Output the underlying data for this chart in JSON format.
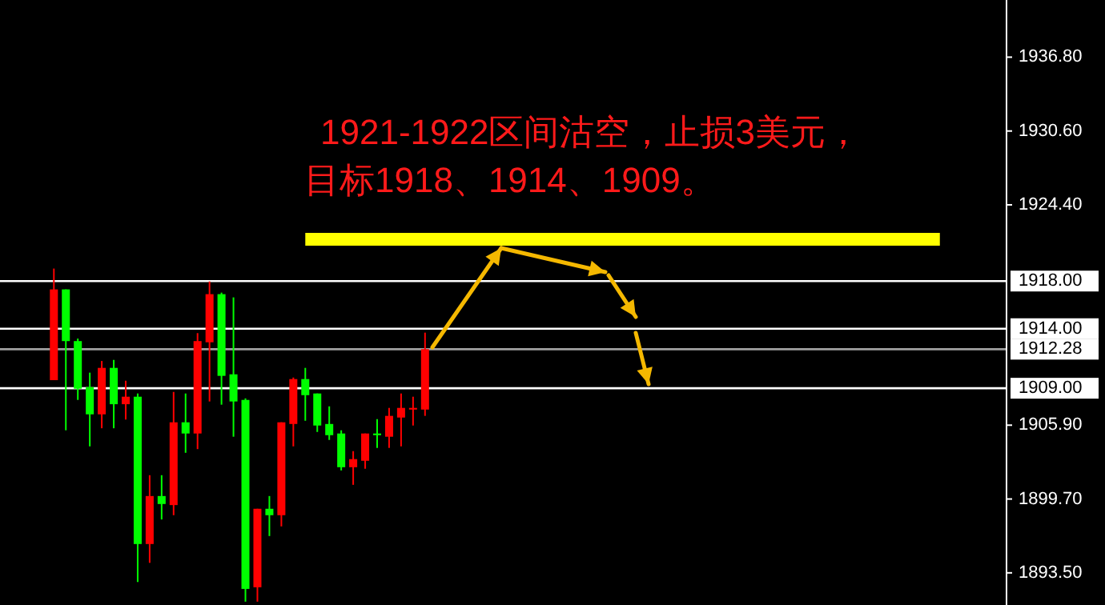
{
  "chart_data": {
    "type": "candlestick",
    "annotations": [
      "1921-1922区间沽空，止损3美元，",
      "目标1918、1914、1909。"
    ],
    "categories": [
      null,
      null,
      null,
      null,
      null,
      null,
      null,
      null,
      null,
      null,
      null,
      null,
      null,
      null,
      null,
      null,
      null,
      null,
      null,
      null,
      null,
      null,
      null,
      null,
      null,
      null,
      null,
      null,
      null,
      null,
      null,
      null,
      null,
      null,
      null,
      null,
      null,
      null,
      null,
      null,
      null,
      null,
      null,
      null,
      null,
      null,
      null,
      null,
      null,
      null,
      null,
      null,
      null,
      null,
      null,
      null,
      null,
      null,
      null,
      null,
      null,
      null,
      null,
      null,
      null,
      null,
      null,
      null,
      null,
      null,
      null,
      null,
      null,
      null,
      null,
      null,
      null,
      null,
      null,
      null,
      null,
      null,
      null,
      null
    ],
    "ohlc": [
      null,
      null,
      null,
      null,
      [
        1909.68,
        1919.05,
        1909.68,
        1917.3
      ],
      [
        1917.3,
        1917.3,
        1905.47,
        1912.96
      ],
      [
        1912.96,
        1913.17,
        1908.02,
        1908.96
      ],
      [
        1909.1,
        1910.31,
        1904.12,
        1906.81
      ],
      [
        1906.81,
        1911.29,
        1905.64,
        1910.71
      ],
      [
        1910.71,
        1911.38,
        1905.64,
        1907.66
      ],
      [
        1907.66,
        1909.64,
        1906.37,
        1908.29
      ],
      [
        1908.29,
        1908.56,
        1892.73,
        1895.92
      ],
      [
        1895.92,
        1901.7,
        1894.34,
        1899.95
      ],
      [
        1899.95,
        1901.7,
        1897.98,
        1899.28
      ],
      [
        1899.19,
        1908.69,
        1898.34,
        1906.14
      ],
      [
        1906.14,
        1908.56,
        1903.58,
        1905.2
      ],
      [
        1905.2,
        1913.63,
        1903.89,
        1912.96
      ],
      [
        1912.86,
        1917.97,
        1907.89,
        1916.9
      ],
      [
        1916.9,
        1917.03,
        1907.62,
        1910.04
      ],
      [
        1910.17,
        1916.63,
        1904.93,
        1907.89
      ],
      [
        1908.02,
        1908.15,
        1891.08,
        1892.15
      ],
      [
        1892.29,
        1898.88,
        1891.08,
        1898.88
      ],
      [
        1898.88,
        1899.95,
        1896.59,
        1898.34
      ],
      [
        1898.34,
        1906.14,
        1897.4,
        1906.14
      ],
      [
        1906.0,
        1909.9,
        1904.12,
        1909.77
      ],
      [
        1909.77,
        1910.71,
        1906.27,
        1908.42
      ],
      [
        1908.56,
        1908.56,
        1905.33,
        1905.87
      ],
      [
        1906.0,
        1907.48,
        1904.66,
        1905.06
      ],
      [
        1905.2,
        1905.47,
        1902.1,
        1902.37
      ],
      [
        1902.37,
        1903.72,
        1900.89,
        1903.05
      ],
      [
        1902.91,
        1905.2,
        1902.24,
        1905.2
      ],
      [
        1905.2,
        1906.41,
        1903.99,
        1905.06
      ],
      [
        1904.93,
        1907.35,
        1903.99,
        1906.68
      ],
      [
        1906.54,
        1908.56,
        1904.12,
        1907.35
      ],
      [
        1907.21,
        1908.29,
        1905.87,
        1907.35
      ],
      [
        1907.21,
        1913.67,
        1906.68,
        1912.28
      ],
      null,
      null,
      null,
      null,
      null,
      null,
      null,
      null,
      null,
      null,
      null,
      null,
      null,
      null,
      null,
      null,
      null,
      null,
      null,
      null,
      null,
      null,
      null,
      null,
      null,
      null,
      null,
      null,
      null,
      null,
      null,
      null,
      null,
      null,
      null,
      null,
      null,
      null,
      null,
      null,
      null,
      null,
      null,
      null,
      null,
      null,
      null,
      null
    ],
    "colors": [
      null,
      null,
      null,
      null,
      "#ff0000",
      "#00ff00",
      "#00ff00",
      "#00ff00",
      "#ff0000",
      "#00ff00",
      "#ff0000",
      "#00ff00",
      "#ff0000",
      "#00ff00",
      "#ff0000",
      "#00ff00",
      "#ff0000",
      "#ff0000",
      "#00ff00",
      "#00ff00",
      "#00ff00",
      "#ff0000",
      "#00ff00",
      "#ff0000",
      "#ff0000",
      "#00ff00",
      "#00ff00",
      "#00ff00",
      "#00ff00",
      "#ff0000",
      "#ff0000",
      "#00ff00",
      "#ff0000",
      "#ff0000",
      "#ff0000",
      "#ff0000",
      null,
      null,
      null,
      null,
      null,
      null,
      null,
      null,
      null,
      null,
      null,
      null,
      null,
      null,
      null,
      null,
      null,
      null,
      null,
      null,
      null,
      null,
      null,
      null,
      null,
      null,
      null,
      null,
      null,
      null,
      null,
      null,
      null,
      null,
      null,
      null,
      null,
      null,
      null,
      null,
      null,
      null,
      null,
      null,
      null,
      null,
      null,
      null
    ],
    "series": [
      {
        "type": "line",
        "color": "#ffff00",
        "values": [
          null,
          null,
          null,
          null,
          null,
          null,
          null,
          null,
          null,
          null,
          null,
          null,
          null,
          null,
          null,
          null,
          null,
          null,
          null,
          null,
          null,
          null,
          null,
          null,
          null,
          1921.5,
          1921.5,
          1921.5,
          1921.5,
          1921.5,
          1921.5,
          1921.5,
          1921.5,
          1921.5,
          1921.5,
          1921.5,
          1921.5,
          1921.5,
          1921.5,
          1921.5,
          1921.5,
          1921.5,
          1921.5,
          1921.5,
          1921.5,
          1921.5,
          1921.5,
          1921.5,
          1921.5,
          1921.5,
          1921.5,
          1921.5,
          1921.5,
          1921.5,
          1921.5,
          1921.5,
          1921.5,
          1921.5,
          1921.5,
          1921.5,
          1921.5,
          1921.5,
          1921.5,
          1921.5,
          1921.5,
          1921.5,
          1921.5,
          1921.5,
          1921.5,
          1921.5,
          1921.5,
          1921.5,
          1921.5,
          1921.5,
          1921.5,
          1921.5,
          1921.5,
          1921.5,
          1921.5,
          null,
          null,
          null,
          null,
          null
        ]
      }
    ],
    "ref_lines": [
      {
        "axis": "y",
        "value": 1918.0,
        "label": "1918.00",
        "color": "#ffffff"
      },
      {
        "axis": "y",
        "value": 1914.0,
        "label": "1914.00",
        "color": "#ffffff"
      },
      {
        "axis": "y",
        "value": 1912.28,
        "label": "1912.28",
        "color": "#a0a0a0"
      },
      {
        "axis": "y",
        "value": 1909.0,
        "label": "1909.00",
        "color": "#ffffff"
      }
    ],
    "ylim": [
      1890.8,
      1941.6
    ],
    "yticks": [
      {
        "value": 1893.5,
        "label": "1893.50"
      },
      {
        "value": 1899.7,
        "label": "1899.70"
      },
      {
        "value": 1905.9,
        "label": "1905.90"
      },
      {
        "value": 1924.4,
        "label": "1924.40"
      },
      {
        "value": 1930.6,
        "label": "1930.60"
      },
      {
        "value": 1936.8,
        "label": "1936.80"
      }
    ],
    "tick_labels": "y",
    "grid": false
  }
}
